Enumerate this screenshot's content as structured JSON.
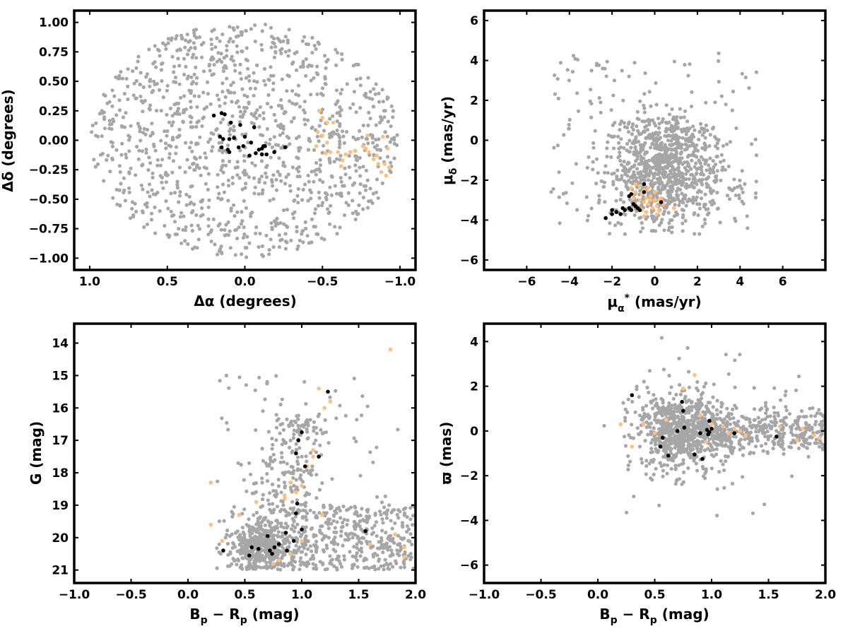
{
  "colors": {
    "field": "#a6a6a6",
    "orange": "#fdbf7b",
    "black": "#000000"
  },
  "chart_data": [
    {
      "type": "scatter",
      "xlabel": "Δα (degrees)",
      "ylabel": "Δδ (degrees)",
      "xlim": [
        1.1,
        -1.1
      ],
      "ylim": [
        -1.1,
        1.1
      ],
      "xticks": [
        1.0,
        0.5,
        0.0,
        -0.5,
        -1.0
      ],
      "xticklabels": [
        "1.0",
        "0.5",
        "0.0",
        "−0.5",
        "−1.0"
      ],
      "yticks": [
        1.0,
        0.75,
        0.5,
        0.25,
        0.0,
        -0.25,
        -0.5,
        -0.75,
        -1.0
      ],
      "yticklabels": [
        "1.00",
        "0.75",
        "0.50",
        "0.25",
        "0.00",
        "−0.25",
        "−0.50",
        "−0.75",
        "−1.00"
      ],
      "field": "uniform field stars within a circle of radius 1.0 deg (~1200 stars)",
      "series": [
        {
          "color": "orange",
          "points": [
            [
              -0.48,
              0.25
            ],
            [
              -0.5,
              0.19
            ],
            [
              -0.53,
              0.15
            ],
            [
              -0.57,
              0.15
            ],
            [
              -0.47,
              0.07
            ],
            [
              -0.5,
              0.04
            ],
            [
              -0.53,
              -0.02
            ],
            [
              -0.46,
              -0.05
            ],
            [
              -0.55,
              -0.1
            ],
            [
              -0.6,
              -0.1
            ],
            [
              -0.52,
              -0.11
            ],
            [
              -0.65,
              -0.12
            ],
            [
              -0.68,
              -0.1
            ],
            [
              -0.71,
              -0.09
            ],
            [
              -0.63,
              -0.17
            ],
            [
              -0.62,
              -0.22
            ],
            [
              -0.79,
              0.04
            ],
            [
              -0.76,
              -0.05
            ],
            [
              -0.78,
              -0.07
            ],
            [
              -0.8,
              -0.1
            ],
            [
              -0.85,
              -0.13
            ],
            [
              -0.89,
              0.03
            ],
            [
              -0.92,
              -0.07
            ],
            [
              -0.86,
              -0.2
            ],
            [
              -0.9,
              -0.2
            ],
            [
              -0.88,
              -0.27
            ],
            [
              -0.91,
              -0.3
            ],
            [
              -0.93,
              -0.23
            ],
            [
              -0.83,
              -0.16
            ]
          ]
        },
        {
          "color": "black",
          "points": [
            [
              0.2,
              0.21
            ],
            [
              0.15,
              0.23
            ],
            [
              0.13,
              0.22
            ],
            [
              0.09,
              0.15
            ],
            [
              0.03,
              0.13
            ],
            [
              -0.06,
              0.11
            ],
            [
              0.16,
              0.03
            ],
            [
              0.14,
              0.01
            ],
            [
              0.1,
              0.01
            ],
            [
              0.07,
              0.02
            ],
            [
              0.0,
              0.03
            ],
            [
              -0.04,
              -0.02
            ],
            [
              0.15,
              -0.06
            ],
            [
              0.11,
              -0.08
            ],
            [
              0.1,
              -0.1
            ],
            [
              0.04,
              -0.06
            ],
            [
              -0.03,
              -0.13
            ],
            [
              -0.07,
              -0.11
            ],
            [
              -0.11,
              -0.07
            ],
            [
              -0.12,
              -0.05
            ],
            [
              -0.13,
              -0.05
            ],
            [
              -0.11,
              -0.12
            ],
            [
              -0.14,
              -0.12
            ],
            [
              -0.19,
              -0.1
            ],
            [
              -0.26,
              -0.06
            ],
            [
              0.01,
              -0.05
            ],
            [
              -0.09,
              -0.08
            ]
          ]
        }
      ]
    },
    {
      "type": "scatter",
      "xlabel": "μα* (mas/yr)",
      "ylabel": "μδ (mas/yr)",
      "xlim": [
        -8,
        8
      ],
      "ylim": [
        -6.5,
        6.5
      ],
      "xticks": [
        -6,
        -4,
        -2,
        0,
        2,
        4,
        6
      ],
      "xticklabels": [
        "−6",
        "−4",
        "−2",
        "0",
        "2",
        "4",
        "6"
      ],
      "yticks": [
        6,
        4,
        2,
        0,
        -2,
        -4,
        -6
      ],
      "yticklabels": [
        "6",
        "4",
        "2",
        "0",
        "−2",
        "−4",
        "−6"
      ],
      "field": "~1100 field stars concentrated near (0.5, -2), spanning roughly x -5..5, y -5..5",
      "series": [
        {
          "color": "orange",
          "points": [
            [
              -0.9,
              -2.2
            ],
            [
              -0.7,
              -2.3
            ],
            [
              -0.5,
              -2.5
            ],
            [
              -0.9,
              -2.6
            ],
            [
              -0.6,
              -2.7
            ],
            [
              -1.0,
              -2.9
            ],
            [
              -0.7,
              -3.0
            ],
            [
              -0.5,
              -3.1
            ],
            [
              -0.2,
              -2.8
            ],
            [
              0.0,
              -3.0
            ],
            [
              0.2,
              -3.0
            ],
            [
              -0.3,
              -3.2
            ],
            [
              -0.1,
              -3.4
            ],
            [
              -0.6,
              -3.5
            ],
            [
              -0.4,
              -3.6
            ],
            [
              0.1,
              -3.3
            ],
            [
              0.3,
              -2.9
            ],
            [
              0.2,
              -3.5
            ],
            [
              -0.8,
              -3.3
            ],
            [
              -0.3,
              -2.4
            ],
            [
              0.0,
              -2.6
            ],
            [
              -0.5,
              -3.8
            ],
            [
              0.1,
              -3.7
            ],
            [
              0.4,
              -3.2
            ],
            [
              0.9,
              -3.4
            ],
            [
              -0.2,
              -3.0
            ],
            [
              -1.1,
              -2.4
            ],
            [
              -0.4,
              -2.9
            ]
          ]
        },
        {
          "color": "black",
          "points": [
            [
              -2.3,
              -3.9
            ],
            [
              -2.0,
              -3.7
            ],
            [
              -1.8,
              -3.6
            ],
            [
              -1.6,
              -3.7
            ],
            [
              -1.4,
              -3.5
            ],
            [
              -1.2,
              -3.4
            ],
            [
              -1.1,
              -3.5
            ],
            [
              -1.0,
              -3.2
            ],
            [
              -0.8,
              -3.4
            ],
            [
              -0.7,
              -3.5
            ],
            [
              -1.2,
              -2.8
            ],
            [
              -1.1,
              -2.7
            ],
            [
              -0.5,
              -2.2
            ],
            [
              -0.5,
              -2.6
            ],
            [
              0.3,
              -3.1
            ],
            [
              -2.0,
              -3.5
            ],
            [
              -1.5,
              -3.4
            ],
            [
              -0.9,
              -3.3
            ]
          ]
        }
      ]
    },
    {
      "type": "scatter",
      "xlabel": "Bp − Rp (mag)",
      "ylabel": "G (mag)",
      "xlim": [
        -1.0,
        2.0
      ],
      "ylim": [
        21.4,
        13.4
      ],
      "xticks": [
        -1.0,
        -0.5,
        0.0,
        0.5,
        1.0,
        1.5,
        2.0
      ],
      "xticklabels": [
        "−1.0",
        "−0.5",
        "0.0",
        "0.5",
        "1.0",
        "1.5",
        "2.0"
      ],
      "yticks": [
        21,
        20,
        19,
        18,
        17,
        16,
        15,
        14
      ],
      "yticklabels": [
        "21",
        "20",
        "19",
        "18",
        "17",
        "16",
        "15",
        "14"
      ],
      "field": "~1150 field stars: dense clump near (0.65, 20.4), broad band to red colors at G 19-21, sequence down to G~16",
      "series": [
        {
          "color": "orange",
          "points": [
            [
              0.2,
              19.6
            ],
            [
              0.2,
              18.3
            ],
            [
              0.3,
              20.1
            ],
            [
              0.45,
              19.3
            ],
            [
              0.6,
              18.9
            ],
            [
              0.75,
              20.8
            ],
            [
              0.8,
              20.7
            ],
            [
              0.85,
              18.8
            ],
            [
              0.9,
              20.5
            ],
            [
              0.95,
              18.6
            ],
            [
              1.0,
              20.1
            ],
            [
              1.0,
              18.4
            ],
            [
              1.05,
              17.8
            ],
            [
              1.1,
              17.5
            ],
            [
              1.1,
              17.3
            ],
            [
              1.18,
              19.3
            ],
            [
              1.2,
              16.0
            ],
            [
              1.25,
              15.8
            ],
            [
              1.15,
              15.4
            ],
            [
              1.6,
              20.2
            ],
            [
              1.78,
              14.2
            ],
            [
              1.82,
              19.9
            ],
            [
              1.9,
              20.6
            ],
            [
              1.9,
              20.3
            ],
            [
              0.85,
              18.7
            ],
            [
              0.9,
              18.3
            ]
          ]
        },
        {
          "color": "black",
          "points": [
            [
              0.31,
              20.4
            ],
            [
              0.54,
              20.55
            ],
            [
              0.56,
              20.3
            ],
            [
              0.62,
              20.35
            ],
            [
              0.7,
              19.95
            ],
            [
              0.72,
              20.4
            ],
            [
              0.74,
              20.5
            ],
            [
              0.76,
              20.3
            ],
            [
              0.8,
              20.2
            ],
            [
              0.86,
              19.85
            ],
            [
              0.87,
              20.4
            ],
            [
              0.93,
              20.1
            ],
            [
              0.95,
              19.25
            ],
            [
              0.95,
              17.4
            ],
            [
              0.96,
              18.95
            ],
            [
              0.97,
              17.0
            ],
            [
              1.0,
              19.75
            ],
            [
              1.0,
              16.75
            ],
            [
              1.03,
              17.8
            ],
            [
              1.15,
              17.5
            ],
            [
              1.23,
              15.5
            ],
            [
              1.56,
              19.8
            ]
          ]
        }
      ]
    },
    {
      "type": "scatter",
      "xlabel": "Bp − Rp (mag)",
      "ylabel": "ϖ (mas)",
      "xlim": [
        -1.0,
        2.0
      ],
      "ylim": [
        -6.8,
        4.8
      ],
      "xticks": [
        -1.0,
        -0.5,
        0.0,
        0.5,
        1.0,
        1.5,
        2.0
      ],
      "xticklabels": [
        "−1.0",
        "−0.5",
        "0.0",
        "0.5",
        "1.0",
        "1.5",
        "2.0"
      ],
      "yticks": [
        4,
        2,
        0,
        -2,
        -4,
        -6
      ],
      "yticklabels": [
        "4",
        "2",
        "0",
        "−2",
        "−4",
        "−6"
      ],
      "field": "~1150 field stars clustered around (0.75, 0) with spread ±2 mas and a red tail toward 2.0",
      "series": [
        {
          "color": "orange",
          "points": [
            [
              0.2,
              0.3
            ],
            [
              0.3,
              -0.7
            ],
            [
              0.4,
              0.3
            ],
            [
              0.5,
              -0.1
            ],
            [
              0.75,
              1.9
            ],
            [
              0.85,
              2.5
            ],
            [
              0.95,
              -0.5
            ],
            [
              1.0,
              0.3
            ],
            [
              1.1,
              0.2
            ],
            [
              1.15,
              -0.1
            ],
            [
              1.2,
              0.1
            ],
            [
              1.25,
              0.0
            ],
            [
              1.3,
              -0.2
            ],
            [
              1.6,
              0.2
            ],
            [
              1.75,
              -0.4
            ],
            [
              1.8,
              0.1
            ],
            [
              1.9,
              -0.2
            ],
            [
              1.95,
              -0.3
            ],
            [
              0.9,
              0.7
            ],
            [
              0.6,
              0.5
            ]
          ]
        },
        {
          "color": "black",
          "points": [
            [
              0.3,
              1.6
            ],
            [
              0.55,
              -0.7
            ],
            [
              0.57,
              -0.3
            ],
            [
              0.62,
              -1.1
            ],
            [
              0.7,
              0.0
            ],
            [
              0.74,
              1.3
            ],
            [
              0.75,
              0.9
            ],
            [
              0.76,
              0.15
            ],
            [
              0.85,
              -1.05
            ],
            [
              0.9,
              -0.1
            ],
            [
              0.92,
              -1.25
            ],
            [
              0.96,
              0.05
            ],
            [
              0.98,
              0.45
            ],
            [
              0.98,
              -0.05
            ],
            [
              1.0,
              0.1
            ],
            [
              1.2,
              -0.1
            ],
            [
              1.57,
              -0.25
            ],
            [
              0.97,
              -0.15
            ]
          ]
        }
      ]
    }
  ]
}
